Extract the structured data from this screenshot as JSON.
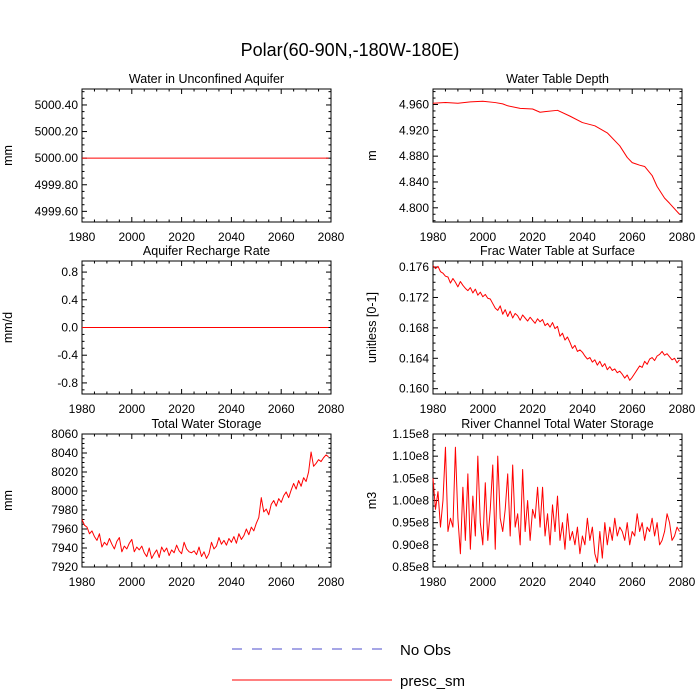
{
  "figure_title": "Polar(60-90N,-180W-180E)",
  "legend": [
    {
      "label": "No Obs",
      "color": "#4d4dcc",
      "style": "dashed"
    },
    {
      "label": "presc_sm",
      "color": "#ff0000",
      "style": "solid"
    }
  ],
  "chart_data": [
    {
      "type": "line",
      "title": "Water in Unconfined Aquifer",
      "xlabel": "",
      "ylabel": "mm",
      "xlim": [
        1980,
        2080
      ],
      "ylim": [
        4999.52,
        5000.52
      ],
      "xticks": [
        1980,
        2000,
        2020,
        2040,
        2060,
        2080
      ],
      "xtick_labels": [
        "1980",
        "2000",
        "2020",
        "2040",
        "2060",
        "2080"
      ],
      "yticks": [
        4999.6,
        4999.8,
        5000.0,
        5000.2,
        5000.4
      ],
      "ytick_labels": [
        "4999.60",
        "4999.80",
        "5000.00",
        "5000.20",
        "5000.40"
      ],
      "series": [
        {
          "name": "presc_sm",
          "x": [
            1980,
            2079
          ],
          "values": [
            5000.0,
            5000.0
          ]
        }
      ]
    },
    {
      "type": "line",
      "title": "Water Table Depth",
      "xlabel": "",
      "ylabel": "m",
      "xlim": [
        1980,
        2080
      ],
      "ylim": [
        4.778,
        4.984
      ],
      "xticks": [
        1980,
        2000,
        2020,
        2040,
        2060,
        2080
      ],
      "xtick_labels": [
        "1980",
        "2000",
        "2020",
        "2040",
        "2060",
        "2080"
      ],
      "yticks": [
        4.8,
        4.84,
        4.88,
        4.92,
        4.96
      ],
      "ytick_labels": [
        "4.800",
        "4.840",
        "4.880",
        "4.920",
        "4.960"
      ],
      "series": [
        {
          "name": "presc_sm",
          "x": [
            1980,
            1985,
            1990,
            1995,
            2000,
            2005,
            2008,
            2010,
            2015,
            2020,
            2023,
            2025,
            2030,
            2035,
            2040,
            2045,
            2050,
            2055,
            2058,
            2060,
            2063,
            2065,
            2068,
            2070,
            2073,
            2075,
            2079
          ],
          "values": [
            4.962,
            4.963,
            4.962,
            4.964,
            4.965,
            4.963,
            4.961,
            4.958,
            4.954,
            4.953,
            4.948,
            4.949,
            4.951,
            4.942,
            4.932,
            4.927,
            4.916,
            4.896,
            4.878,
            4.87,
            4.866,
            4.864,
            4.85,
            4.833,
            4.815,
            4.807,
            4.79
          ]
        }
      ]
    },
    {
      "type": "line",
      "title": "Aquifer Recharge Rate",
      "xlabel": "",
      "ylabel": "mm/d",
      "xlim": [
        1980,
        2080
      ],
      "ylim": [
        -0.96,
        0.96
      ],
      "xticks": [
        1980,
        2000,
        2020,
        2040,
        2060,
        2080
      ],
      "xtick_labels": [
        "1980",
        "2000",
        "2020",
        "2040",
        "2060",
        "2080"
      ],
      "yticks": [
        -0.8,
        -0.4,
        0.0,
        0.4,
        0.8
      ],
      "ytick_labels": [
        "-0.8",
        "-0.4",
        "0.0",
        "0.4",
        "0.8"
      ],
      "series": [
        {
          "name": "presc_sm",
          "x": [
            1980,
            2079
          ],
          "values": [
            0.0,
            0.0
          ]
        }
      ]
    },
    {
      "type": "line",
      "title": "Frac Water Table at Surface",
      "xlabel": "",
      "ylabel": "unitless [0-1]",
      "xlim": [
        1980,
        2080
      ],
      "ylim": [
        0.1593,
        0.1768
      ],
      "xticks": [
        1980,
        2000,
        2020,
        2040,
        2060,
        2080
      ],
      "xtick_labels": [
        "1980",
        "2000",
        "2020",
        "2040",
        "2060",
        "2080"
      ],
      "yticks": [
        0.16,
        0.164,
        0.168,
        0.172,
        0.176
      ],
      "ytick_labels": [
        "0.160",
        "0.164",
        "0.168",
        "0.172",
        "0.176"
      ],
      "series": [
        {
          "name": "presc_sm",
          "x": [
            1980,
            1981,
            1982,
            1983,
            1984,
            1985,
            1986,
            1987,
            1988,
            1989,
            1990,
            1991,
            1992,
            1993,
            1994,
            1995,
            1996,
            1997,
            1998,
            1999,
            2000,
            2001,
            2002,
            2003,
            2004,
            2005,
            2006,
            2007,
            2008,
            2009,
            2010,
            2011,
            2012,
            2013,
            2014,
            2015,
            2016,
            2017,
            2018,
            2019,
            2020,
            2021,
            2022,
            2023,
            2024,
            2025,
            2026,
            2027,
            2028,
            2029,
            2030,
            2031,
            2032,
            2033,
            2034,
            2035,
            2036,
            2037,
            2038,
            2039,
            2040,
            2041,
            2042,
            2043,
            2044,
            2045,
            2046,
            2047,
            2048,
            2049,
            2050,
            2051,
            2052,
            2053,
            2054,
            2055,
            2056,
            2057,
            2058,
            2059,
            2060,
            2061,
            2062,
            2063,
            2064,
            2065,
            2066,
            2067,
            2068,
            2069,
            2070,
            2071,
            2072,
            2073,
            2074,
            2075,
            2076,
            2077,
            2078,
            2079
          ],
          "values": [
            0.1762,
            0.1758,
            0.1761,
            0.1754,
            0.1752,
            0.1748,
            0.1747,
            0.1739,
            0.1745,
            0.174,
            0.1734,
            0.1741,
            0.1736,
            0.1732,
            0.1729,
            0.1733,
            0.1726,
            0.1731,
            0.1723,
            0.1727,
            0.1721,
            0.1724,
            0.1719,
            0.1718,
            0.1712,
            0.1706,
            0.1703,
            0.1709,
            0.1698,
            0.1704,
            0.1695,
            0.1702,
            0.1693,
            0.1699,
            0.1696,
            0.169,
            0.1697,
            0.1693,
            0.1689,
            0.1694,
            0.169,
            0.1686,
            0.1692,
            0.1688,
            0.1691,
            0.1683,
            0.1686,
            0.1681,
            0.1687,
            0.1679,
            0.1682,
            0.1669,
            0.1673,
            0.1664,
            0.1668,
            0.1661,
            0.1653,
            0.1657,
            0.1649,
            0.1651,
            0.1648,
            0.1643,
            0.1639,
            0.1641,
            0.1635,
            0.1638,
            0.1631,
            0.1636,
            0.1629,
            0.1633,
            0.1625,
            0.1629,
            0.1624,
            0.1626,
            0.1621,
            0.1623,
            0.1619,
            0.1614,
            0.1618,
            0.1611,
            0.1615,
            0.162,
            0.1625,
            0.163,
            0.1628,
            0.1636,
            0.1632,
            0.1639,
            0.1641,
            0.1637,
            0.1643,
            0.1645,
            0.1649,
            0.1644,
            0.1646,
            0.1642,
            0.1638,
            0.164,
            0.1634,
            0.1638
          ]
        }
      ]
    },
    {
      "type": "line",
      "title": "Total Water Storage",
      "xlabel": "",
      "ylabel": "mm",
      "xlim": [
        1980,
        2080
      ],
      "ylim": [
        7920,
        8060
      ],
      "xticks": [
        1980,
        2000,
        2020,
        2040,
        2060,
        2080
      ],
      "xtick_labels": [
        "1980",
        "2000",
        "2020",
        "2040",
        "2060",
        "2080"
      ],
      "yticks": [
        7920,
        7940,
        7960,
        7980,
        8000,
        8020,
        8040,
        8060
      ],
      "ytick_labels": [
        "7920",
        "7940",
        "7960",
        "7980",
        "8000",
        "8020",
        "8040",
        "8060"
      ],
      "series": [
        {
          "name": "presc_sm",
          "x": [
            1980,
            1981,
            1982,
            1983,
            1984,
            1985,
            1986,
            1987,
            1988,
            1989,
            1990,
            1991,
            1992,
            1993,
            1994,
            1995,
            1996,
            1997,
            1998,
            1999,
            2000,
            2001,
            2002,
            2003,
            2004,
            2005,
            2006,
            2007,
            2008,
            2009,
            2010,
            2011,
            2012,
            2013,
            2014,
            2015,
            2016,
            2017,
            2018,
            2019,
            2020,
            2021,
            2022,
            2023,
            2024,
            2025,
            2026,
            2027,
            2028,
            2029,
            2030,
            2031,
            2032,
            2033,
            2034,
            2035,
            2036,
            2037,
            2038,
            2039,
            2040,
            2041,
            2042,
            2043,
            2044,
            2045,
            2046,
            2047,
            2048,
            2049,
            2050,
            2051,
            2052,
            2053,
            2054,
            2055,
            2056,
            2057,
            2058,
            2059,
            2060,
            2061,
            2062,
            2063,
            2064,
            2065,
            2066,
            2067,
            2068,
            2069,
            2070,
            2071,
            2072,
            2073,
            2074,
            2075,
            2076,
            2077,
            2078,
            2079
          ],
          "values": [
            7970,
            7964,
            7962,
            7955,
            7958,
            7952,
            7948,
            7955,
            7941,
            7946,
            7943,
            7950,
            7944,
            7939,
            7947,
            7951,
            7936,
            7942,
            7939,
            7945,
            7949,
            7936,
            7941,
            7938,
            7942,
            7935,
            7931,
            7940,
            7929,
            7934,
            7938,
            7930,
            7941,
            7936,
            7940,
            7932,
            7938,
            7935,
            7943,
            7937,
            7934,
            7946,
            7939,
            7936,
            7935,
            7937,
            7933,
            7941,
            7931,
            7936,
            7929,
            7934,
            7946,
            7939,
            7942,
            7951,
            7944,
            7948,
            7943,
            7950,
            7946,
            7952,
            7945,
            7955,
            7949,
            7953,
            7960,
            7954,
            7962,
            7958,
            7966,
            7972,
            7993,
            7978,
            7981,
            7975,
            7986,
            7990,
            7984,
            7992,
            7988,
            7995,
            7999,
            7993,
            8001,
            8008,
            8002,
            8011,
            8005,
            8014,
            8010,
            8020,
            8041,
            8026,
            8029,
            8033,
            8031,
            8035,
            8038,
            8036
          ]
        }
      ]
    },
    {
      "type": "line",
      "title": "River Channel Total Water Storage",
      "xlabel": "",
      "ylabel": "m3",
      "xlim": [
        1980,
        2080
      ],
      "ylim": [
        0.85,
        1.15
      ],
      "value_scale": "1e8",
      "xticks": [
        1980,
        2000,
        2020,
        2040,
        2060,
        2080
      ],
      "xtick_labels": [
        "1980",
        "2000",
        "2020",
        "2040",
        "2060",
        "2080"
      ],
      "yticks": [
        0.85,
        0.9,
        0.95,
        1.0,
        1.05,
        1.1,
        1.15
      ],
      "ytick_labels": [
        "0.85e8",
        "0.90e8",
        "0.95e8",
        "1.00e8",
        "1.05e8",
        "1.10e8",
        "1.15e8"
      ],
      "series": [
        {
          "name": "presc_sm",
          "x": [
            1980,
            1981,
            1982,
            1983,
            1984,
            1985,
            1986,
            1987,
            1988,
            1989,
            1990,
            1991,
            1992,
            1993,
            1994,
            1995,
            1996,
            1997,
            1998,
            1999,
            2000,
            2001,
            2002,
            2003,
            2004,
            2005,
            2006,
            2007,
            2008,
            2009,
            2010,
            2011,
            2012,
            2013,
            2014,
            2015,
            2016,
            2017,
            2018,
            2019,
            2020,
            2021,
            2022,
            2023,
            2024,
            2025,
            2026,
            2027,
            2028,
            2029,
            2030,
            2031,
            2032,
            2033,
            2034,
            2035,
            2036,
            2037,
            2038,
            2039,
            2040,
            2041,
            2042,
            2043,
            2044,
            2045,
            2046,
            2047,
            2048,
            2049,
            2050,
            2051,
            2052,
            2053,
            2054,
            2055,
            2056,
            2057,
            2058,
            2059,
            2060,
            2061,
            2062,
            2063,
            2064,
            2065,
            2066,
            2067,
            2068,
            2069,
            2070,
            2071,
            2072,
            2073,
            2074,
            2075,
            2076,
            2077,
            2078,
            2079
          ],
          "values": [
            1.05,
            0.98,
            1.02,
            0.94,
            1.0,
            1.12,
            0.93,
            0.96,
            0.94,
            1.12,
            0.96,
            0.88,
            1.03,
            0.91,
            1.06,
            0.89,
            1.01,
            0.92,
            1.1,
            0.95,
            0.9,
            1.04,
            0.91,
            0.98,
            1.08,
            0.89,
            1.1,
            0.96,
            0.93,
            0.98,
            1.06,
            0.92,
            1.08,
            0.94,
            0.97,
            0.9,
            1.07,
            0.93,
            1.0,
            0.91,
            0.98,
            0.96,
            1.03,
            0.94,
            1.03,
            0.92,
            0.97,
            0.9,
            0.99,
            0.93,
            1.01,
            0.91,
            0.95,
            0.89,
            0.97,
            0.91,
            0.93,
            0.9,
            0.94,
            0.88,
            0.92,
            0.9,
            0.96,
            0.91,
            0.94,
            0.88,
            0.86,
            0.93,
            0.87,
            0.95,
            0.9,
            0.94,
            0.91,
            0.96,
            0.92,
            0.94,
            0.93,
            0.91,
            0.95,
            0.9,
            0.93,
            0.92,
            0.97,
            0.93,
            0.95,
            0.91,
            0.94,
            0.93,
            0.96,
            0.92,
            0.95,
            0.9,
            0.91,
            0.93,
            0.97,
            0.95,
            0.91,
            0.92,
            0.94,
            0.93
          ]
        }
      ]
    }
  ]
}
